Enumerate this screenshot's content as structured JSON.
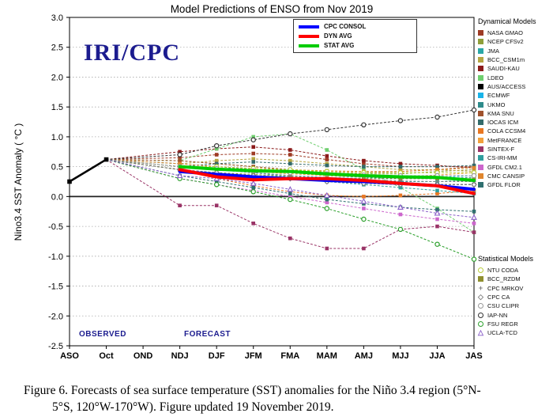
{
  "title": "Model Predictions of ENSO from Nov 2019",
  "watermark": "IRI/CPC",
  "ylabel": "Nino3.4 SST Anomaly ( °C )",
  "annotations": {
    "observed": "OBSERVED",
    "forecast": "FORECAST"
  },
  "legend_headings": {
    "dynamical": "Dynamical Models",
    "statistical": "Statistical Models"
  },
  "caption": {
    "line1": "Figure 6. Forecasts of sea surface temperature (SST) anomalies for the Niño 3.4 region (5°N-",
    "line2": "5°S, 120°W-170°W). Figure updated 19 November 2019."
  },
  "chart_data": {
    "type": "line",
    "title": "Model Predictions of ENSO from Nov 2019",
    "xlabel": "",
    "ylabel": "Nino3.4 SST Anomaly ( °C )",
    "ylim": [
      -2.5,
      3.0
    ],
    "y_ticks": [
      3.0,
      2.5,
      2.0,
      1.5,
      1.0,
      0.5,
      0.0,
      -0.5,
      -1.0,
      -1.5,
      -2.0,
      -2.5
    ],
    "x_categories": [
      "ASO",
      "Oct",
      "OND",
      "NDJ",
      "DJF",
      "JFM",
      "FMA",
      "MAM",
      "AMJ",
      "MJJ",
      "JJA",
      "JAS"
    ],
    "forecast_start_index": 3,
    "observed": {
      "x": [
        "ASO",
        "Oct"
      ],
      "values": [
        0.25,
        0.62
      ],
      "color": "#000000"
    },
    "averages": [
      {
        "name": "CPC CONSOL",
        "color": "#0000ff",
        "values": [
          0.42,
          0.37,
          0.33,
          0.3,
          0.27,
          0.25,
          0.22,
          0.18,
          0.12
        ]
      },
      {
        "name": "DYN AVG",
        "color": "#ff0000",
        "values": [
          0.45,
          0.33,
          0.28,
          0.3,
          0.3,
          0.27,
          0.22,
          0.18,
          0.05
        ]
      },
      {
        "name": "STAT AVG",
        "color": "#00cc00",
        "values": [
          0.5,
          0.46,
          0.43,
          0.42,
          0.38,
          0.35,
          0.33,
          0.32,
          0.27
        ]
      }
    ],
    "models": [
      {
        "name": "NASA GMAO",
        "group": "dynamical",
        "marker": "square",
        "color": "#9e3b25",
        "values": [
          0.65,
          0.7,
          0.72,
          0.7,
          0.62,
          0.55,
          0.5,
          0.5,
          0.5
        ]
      },
      {
        "name": "NCEP CFSv2",
        "group": "dynamical",
        "marker": "square",
        "color": "#8f9f3a",
        "values": [
          0.6,
          0.55,
          0.5,
          0.45,
          0.4,
          0.38,
          0.38,
          0.42,
          0.45
        ]
      },
      {
        "name": "JMA",
        "group": "dynamical",
        "marker": "square",
        "color": "#2aa7a7",
        "values": [
          0.5,
          0.45,
          0.4,
          0.33,
          0.28,
          0.25,
          0.25,
          0.25,
          0.27
        ]
      },
      {
        "name": "BCC_CSM1m",
        "group": "dynamical",
        "marker": "square",
        "color": "#b5a642",
        "values": [
          0.55,
          0.6,
          0.63,
          0.6,
          0.55,
          0.5,
          0.45,
          0.45,
          0.42
        ]
      },
      {
        "name": "SAUDI-KAU",
        "group": "dynamical",
        "marker": "square",
        "color": "#8b1a1a",
        "values": [
          0.75,
          0.8,
          0.83,
          0.78,
          0.68,
          0.6,
          0.55,
          0.52,
          0.48
        ]
      },
      {
        "name": "LDEO",
        "group": "dynamical",
        "marker": "square",
        "color": "#6fcf6f",
        "values": [
          0.6,
          0.8,
          1.0,
          1.05,
          0.78,
          0.45,
          0.15,
          -0.2,
          -0.6
        ]
      },
      {
        "name": "AUS/ACCESS",
        "group": "dynamical",
        "marker": "square",
        "color": "#000000",
        "values": [
          0.45,
          0.4,
          0.35,
          0.3,
          0.27,
          0.23,
          0.2,
          0.2,
          0.2
        ]
      },
      {
        "name": "ECMWF",
        "group": "dynamical",
        "marker": "square",
        "color": "#18b3e8",
        "values": [
          0.5,
          0.45,
          0.4,
          0.35,
          0.32,
          0.3,
          0.3,
          0.32,
          0.35
        ]
      },
      {
        "name": "UKMO",
        "group": "dynamical",
        "marker": "square",
        "color": "#2e8b8b",
        "values": [
          0.55,
          0.5,
          0.45,
          0.4,
          0.35,
          0.32,
          0.3,
          0.3,
          0.32
        ]
      },
      {
        "name": "KMA SNU",
        "group": "dynamical",
        "marker": "square",
        "color": "#a0522d",
        "values": [
          0.6,
          0.55,
          0.5,
          0.45,
          0.42,
          0.4,
          0.42,
          0.45,
          0.5
        ]
      },
      {
        "name": "IOCAS ICM",
        "group": "dynamical",
        "marker": "square",
        "color": "#336b6b",
        "values": [
          0.5,
          0.55,
          0.58,
          0.55,
          0.52,
          0.5,
          0.5,
          0.5,
          0.52
        ]
      },
      {
        "name": "COLA CCSM4",
        "group": "dynamical",
        "marker": "square",
        "color": "#e87722",
        "values": [
          0.45,
          0.3,
          0.18,
          0.08,
          0.02,
          0.0,
          0.02,
          0.05,
          0.1
        ]
      },
      {
        "name": "MetFRANCE",
        "group": "dynamical",
        "marker": "square",
        "color": "#f2a03c",
        "values": [
          0.5,
          0.45,
          0.42,
          0.38,
          0.35,
          0.33,
          0.33,
          0.36,
          0.4
        ]
      },
      {
        "name": "SINTEX-F",
        "group": "dynamical",
        "marker": "square",
        "color": "#993366",
        "values": [
          -0.15,
          -0.15,
          -0.45,
          -0.7,
          -0.87,
          -0.87,
          -0.55,
          -0.5,
          -0.6
        ]
      },
      {
        "name": "CS-IRI-MM",
        "group": "dynamical",
        "marker": "square",
        "color": "#2f9e9e",
        "values": [
          0.45,
          0.4,
          0.35,
          0.3,
          0.25,
          0.2,
          0.15,
          0.1,
          0.05
        ]
      },
      {
        "name": "GFDL CM2.1",
        "group": "dynamical",
        "marker": "square",
        "color": "#cc66cc",
        "values": [
          0.3,
          0.2,
          0.1,
          0.0,
          -0.1,
          -0.2,
          -0.3,
          -0.38,
          -0.45
        ]
      },
      {
        "name": "CMC CANSIP",
        "group": "dynamical",
        "marker": "square",
        "color": "#e0862e",
        "values": [
          0.55,
          0.5,
          0.47,
          0.45,
          0.43,
          0.42,
          0.42,
          0.45,
          0.48
        ]
      },
      {
        "name": "GFDL FLOR",
        "group": "dynamical",
        "marker": "square",
        "color": "#2f6f6f",
        "values": [
          0.35,
          0.25,
          0.15,
          0.05,
          -0.05,
          -0.12,
          -0.18,
          -0.22,
          -0.25
        ]
      },
      {
        "name": "NTU CODA",
        "group": "statistical",
        "marker": "circle-open",
        "color": "#b8cc3a",
        "values": [
          0.5,
          0.5,
          0.47,
          0.45,
          0.42,
          0.4,
          0.4,
          0.4,
          0.4
        ]
      },
      {
        "name": "BCC_RZDM",
        "group": "statistical",
        "marker": "square",
        "color": "#8f8f2f",
        "values": [
          0.45,
          0.4,
          0.37,
          0.33,
          0.3,
          0.3,
          0.3,
          0.3,
          0.3
        ]
      },
      {
        "name": "CPC MRKOV",
        "group": "statistical",
        "marker": "plus",
        "color": "#808080",
        "values": [
          0.5,
          0.45,
          0.4,
          0.35,
          0.3,
          0.28,
          0.26,
          0.25,
          0.25
        ]
      },
      {
        "name": "CPC CA",
        "group": "statistical",
        "marker": "diamond-open",
        "color": "#7d7d7d",
        "values": [
          0.45,
          0.4,
          0.35,
          0.3,
          0.25,
          0.22,
          0.2,
          0.2,
          0.2
        ]
      },
      {
        "name": "CSU CLIPR",
        "group": "statistical",
        "marker": "circle-open",
        "color": "#999999",
        "values": [
          0.5,
          0.47,
          0.43,
          0.4,
          0.38,
          0.36,
          0.35,
          0.35,
          0.35
        ]
      },
      {
        "name": "IAP-NN",
        "group": "statistical",
        "marker": "circle-open",
        "color": "#333333",
        "values": [
          0.7,
          0.85,
          0.95,
          1.05,
          1.12,
          1.2,
          1.27,
          1.33,
          1.45
        ]
      },
      {
        "name": "FSU REGR",
        "group": "statistical",
        "marker": "circle-open",
        "color": "#2ca02c",
        "values": [
          0.3,
          0.2,
          0.08,
          -0.05,
          -0.2,
          -0.38,
          -0.55,
          -0.8,
          -1.05
        ]
      },
      {
        "name": "UCLA-TCD",
        "group": "statistical",
        "marker": "triangle-open",
        "color": "#8a5fc9",
        "values": [
          0.35,
          0.3,
          0.22,
          0.12,
          0.02,
          -0.08,
          -0.18,
          -0.28,
          -0.35
        ]
      }
    ]
  }
}
